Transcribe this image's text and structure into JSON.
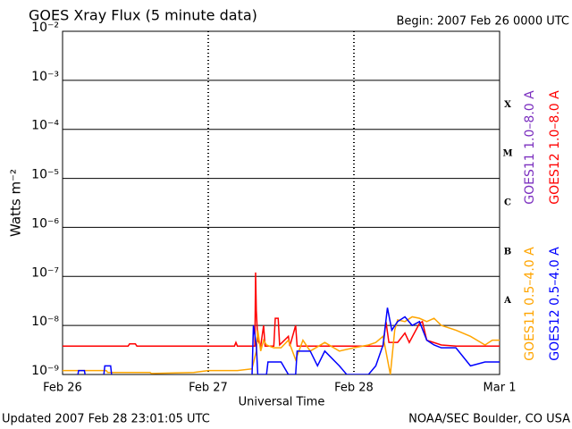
{
  "chart_data": {
    "type": "line",
    "title": "GOES Xray Flux (5 minute data)",
    "subtitle": "Begin:  2007 Feb 26 0000 UTC",
    "y_label": "Watts m⁻²",
    "x_label": "Universal Time",
    "footer_left": "Updated 2007 Feb 28 23:01:05 UTC",
    "footer_right": "NOAA/SEC Boulder, CO USA",
    "class_labels": [
      "X",
      "M",
      "C",
      "B",
      "A"
    ],
    "log_y": true,
    "grid": true,
    "xlim": [
      0,
      3
    ],
    "xticks": [
      {
        "value": 0,
        "label": "Feb 26"
      },
      {
        "value": 1,
        "label": "Feb 27"
      },
      {
        "value": 2,
        "label": "Feb 28"
      },
      {
        "value": 3,
        "label": "Mar 1"
      }
    ],
    "ylim": [
      1e-09,
      0.01
    ],
    "yticks": [
      {
        "value": 1e-09,
        "label": "10⁻⁹"
      },
      {
        "value": 1e-08,
        "label": "10⁻⁸"
      },
      {
        "value": 1e-07,
        "label": "10⁻⁷"
      },
      {
        "value": 1e-06,
        "label": "10⁻⁶"
      },
      {
        "value": 1e-05,
        "label": "10⁻⁵"
      },
      {
        "value": 0.0001,
        "label": "10⁻⁴"
      },
      {
        "value": 0.001,
        "label": "10⁻³"
      },
      {
        "value": 0.01,
        "label": "10⁻²"
      }
    ],
    "series": [
      {
        "name": "GOES11 1.0–8.0 A",
        "color": "#7b2fbf",
        "x": [],
        "values": []
      },
      {
        "name": "GOES12 1.0–8.0 A",
        "color": "#ff0000",
        "x": [
          0,
          0.45,
          0.46,
          0.5,
          0.51,
          1.18,
          1.19,
          1.2,
          1.32,
          1.325,
          1.33,
          1.34,
          1.36,
          1.38,
          1.39,
          1.45,
          1.46,
          1.48,
          1.49,
          1.55,
          1.56,
          1.6,
          1.61,
          2.2,
          2.22,
          2.24,
          2.3,
          2.35,
          2.38,
          2.45,
          2.47,
          2.5,
          2.6,
          2.7,
          3.0
        ],
        "values": [
          3.8e-09,
          3.8e-09,
          4.2e-09,
          4.2e-09,
          3.8e-09,
          3.8e-09,
          4.5e-09,
          3.8e-09,
          3.8e-09,
          1.2e-07,
          2e-08,
          5e-09,
          3.8e-09,
          1e-08,
          3.8e-09,
          3.8e-09,
          1.4e-08,
          1.4e-08,
          4e-09,
          6e-09,
          3.8e-09,
          1e-08,
          3.8e-09,
          3.8e-09,
          1.2e-08,
          4.5e-09,
          4.5e-09,
          7e-09,
          4.5e-09,
          1.1e-08,
          1.2e-08,
          5e-09,
          4e-09,
          3.8e-09,
          3.8e-09
        ]
      },
      {
        "name": "GOES11 0.5–4.0 A",
        "color": "#ffa500",
        "x": [
          0,
          0.3,
          0.31,
          0.6,
          0.61,
          0.9,
          1.0,
          1.2,
          1.3,
          1.33,
          1.34,
          1.36,
          1.38,
          1.4,
          1.45,
          1.5,
          1.55,
          1.6,
          1.65,
          1.7,
          1.8,
          1.9,
          2.0,
          2.1,
          2.15,
          2.2,
          2.25,
          2.28,
          2.3,
          2.35,
          2.4,
          2.45,
          2.5,
          2.55,
          2.6,
          2.7,
          2.8,
          2.9,
          2.95,
          3.0
        ],
        "values": [
          1.2e-09,
          1.2e-09,
          1.1e-09,
          1.1e-09,
          1.05e-09,
          1.1e-09,
          1.2e-09,
          1.2e-09,
          1.3e-09,
          3e-09,
          8e-09,
          3e-09,
          5e-09,
          4e-09,
          3.5e-09,
          3.5e-09,
          5e-09,
          2e-09,
          5e-09,
          3e-09,
          4.5e-09,
          3e-09,
          3.5e-09,
          4e-09,
          4.5e-09,
          6e-09,
          1e-09,
          8e-09,
          1.3e-08,
          1.2e-08,
          1.5e-08,
          1.4e-08,
          1.2e-08,
          1.4e-08,
          1e-08,
          8e-09,
          6e-09,
          4e-09,
          5e-09,
          5e-09
        ]
      },
      {
        "name": "GOES12 0.5–4.0 A",
        "color": "#0000ff",
        "x": [
          0,
          0.1,
          0.11,
          0.15,
          0.16,
          0.28,
          0.29,
          0.33,
          0.34,
          1.3,
          1.31,
          1.33,
          1.34,
          1.4,
          1.41,
          1.5,
          1.55,
          1.6,
          1.61,
          1.7,
          1.75,
          1.8,
          1.9,
          1.95,
          2.1,
          2.15,
          2.2,
          2.23,
          2.26,
          2.3,
          2.35,
          2.4,
          2.45,
          2.5,
          2.55,
          2.6,
          2.7,
          2.8,
          2.9,
          3.0
        ],
        "values": [
          8e-10,
          8e-10,
          1.2e-09,
          1.2e-09,
          8e-10,
          8e-10,
          1.5e-09,
          1.5e-09,
          8e-10,
          8e-10,
          1e-08,
          4e-09,
          1e-09,
          1e-09,
          1.8e-09,
          1.8e-09,
          1e-09,
          1e-09,
          3e-09,
          3e-09,
          1.5e-09,
          3e-09,
          1.5e-09,
          1e-09,
          1e-09,
          1.5e-09,
          4e-09,
          2.3e-08,
          8e-09,
          1.2e-08,
          1.5e-08,
          1e-08,
          1.2e-08,
          5e-09,
          4e-09,
          3.5e-09,
          3.5e-09,
          1.5e-09,
          1.8e-09,
          1.8e-09
        ]
      }
    ]
  }
}
